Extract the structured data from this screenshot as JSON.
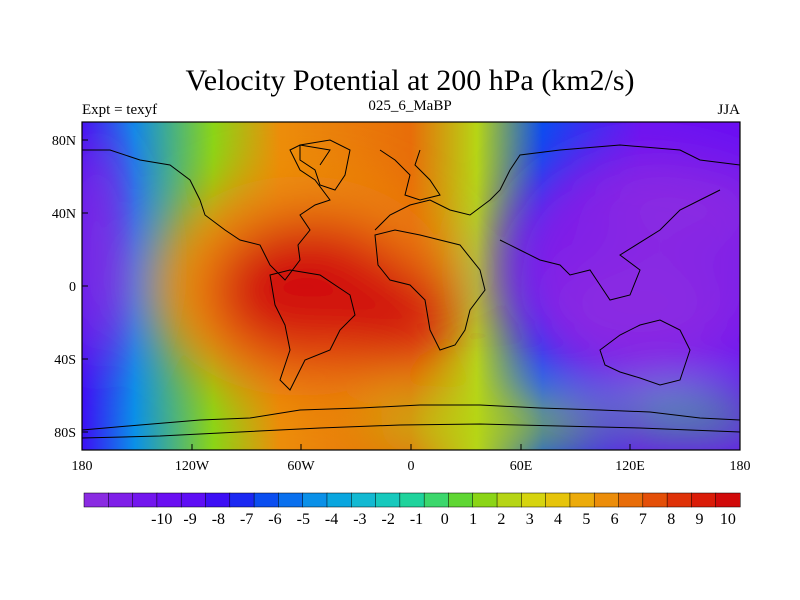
{
  "figure": {
    "title": "Velocity Potential at 200 hPa (km2/s)",
    "left_label": "Expt = texyf",
    "center_label": "025_6_MaBP",
    "right_label": "JJA"
  },
  "map_axes": {
    "x_ticks": [
      "180",
      "120W",
      "60W",
      "0",
      "60E",
      "120E",
      "180"
    ],
    "y_ticks": [
      "80N",
      "40N",
      "0",
      "40S",
      "80S"
    ]
  },
  "field": {
    "description_units": "km2/s",
    "range": [
      -10,
      10
    ],
    "centers": [
      {
        "lon": -55,
        "lat": 5,
        "value": 10
      },
      {
        "lon": -80,
        "lat": -15,
        "value": 10
      },
      {
        "lon": 120,
        "lat": 10,
        "value": -10
      },
      {
        "lon": 165,
        "lat": 50,
        "value": -10
      },
      {
        "lon": -175,
        "lat": 20,
        "value": -10
      }
    ]
  },
  "colorbar": {
    "labels": [
      "-10",
      "-9",
      "-8",
      "-7",
      "-6",
      "-5",
      "-4",
      "-3",
      "-2",
      "-1",
      "0",
      "1",
      "2",
      "3",
      "4",
      "5",
      "6",
      "7",
      "8",
      "9",
      "10"
    ],
    "colors": [
      "#8a2be2",
      "#7f1fe8",
      "#7316ee",
      "#6a0ff2",
      "#5e0df5",
      "#3d0ef5",
      "#1b28f2",
      "#0b4ef0",
      "#0a70ee",
      "#0a90e8",
      "#0aa6df",
      "#13b9d2",
      "#17c9bd",
      "#1fd39c",
      "#3cd76c",
      "#5fd633",
      "#8bd516",
      "#b6d515",
      "#d6d40f",
      "#e6c40b",
      "#ecab0b",
      "#ec8d0a",
      "#e86d09",
      "#e44f08",
      "#df3208",
      "#da1c08",
      "#d10a0a"
    ]
  }
}
